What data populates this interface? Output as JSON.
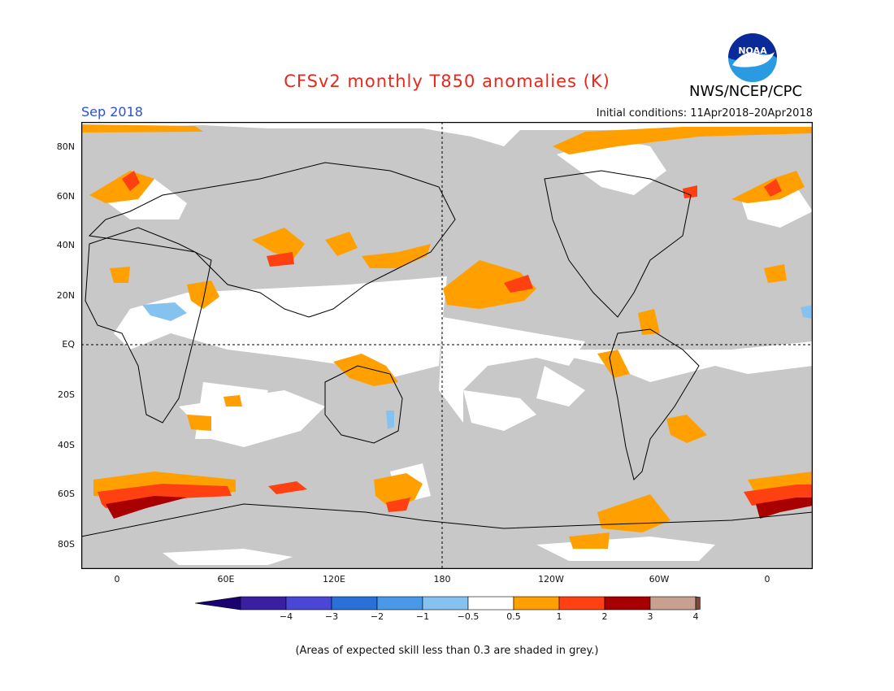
{
  "title": "CFSv2 monthly T850 anomalies (K)",
  "month": "Sep 2018",
  "initial_conditions": "Initial conditions: 11Apr2018–20Apr2018",
  "org": "NWS/NCEP/CPC",
  "logo_text": "NOAA",
  "lat_labels": [
    "80N",
    "60N",
    "40N",
    "20N",
    "EQ",
    "20S",
    "40S",
    "60S",
    "80S"
  ],
  "lon_labels": [
    "0",
    "60E",
    "120E",
    "180",
    "120W",
    "60W",
    "0"
  ],
  "colorbar": {
    "labels": [
      "−4",
      "−3",
      "−2",
      "−1",
      "−0.5",
      "0.5",
      "1",
      "2",
      "3",
      "4"
    ],
    "colors": [
      "#3a1fa0",
      "#4a46d6",
      "#2b70d8",
      "#4a98e8",
      "#86c2f0",
      "#ffffff",
      "#ffa000",
      "#ff4010",
      "#a80000",
      "#c8a090"
    ],
    "end_low_color": "#1a0070",
    "end_high_color": "#7a4a3a"
  },
  "footnote": "(Areas of expected skill less than 0.3 are shaded in grey.)",
  "colors": {
    "skill_grey": "#c8c8c8",
    "orange": "#ffa000",
    "red_orange": "#ff4010",
    "dark_red": "#a80000",
    "light_blue": "#86c2f0"
  }
}
